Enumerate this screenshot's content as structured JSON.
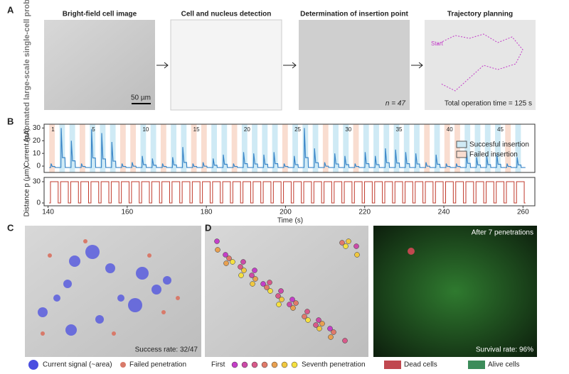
{
  "panel_a": {
    "label": "A",
    "side_title": "Automated large-scale single-cell probing",
    "steps": [
      {
        "title": "Bright-field cell image",
        "note": "50 µm"
      },
      {
        "title": "Cell and nucleus detection"
      },
      {
        "title": "Determination of insertion point",
        "note": "n = 47"
      },
      {
        "title": "Trajectory planning",
        "note": "Total operation time = 125 s",
        "start": "Start"
      }
    ]
  },
  "panel_b": {
    "label": "B",
    "xlabel": "Time (s)",
    "xlim": [
      139,
      263
    ],
    "xticks": [
      140,
      160,
      180,
      200,
      220,
      240,
      260
    ],
    "trial_start": 140.3,
    "trial_period": 2.56,
    "trial_labels": [
      1,
      5,
      10,
      15,
      20,
      25,
      30,
      35,
      40,
      45
    ],
    "success_color": "#cfeaf5",
    "failed_color": "#f9ddd0",
    "trace_color": "#3a86c8",
    "outcomes": [
      "failed",
      "success",
      "success",
      "failed",
      "success",
      "success",
      "success",
      "failed",
      "failed",
      "success",
      "success",
      "failed",
      "success",
      "success",
      "failed",
      "failed",
      "success",
      "success",
      "failed",
      "success",
      "success",
      "success",
      "success",
      "failed",
      "success",
      "success",
      "success",
      "failed",
      "success",
      "success",
      "failed",
      "success",
      "success",
      "success",
      "success",
      "success",
      "success",
      "failed",
      "success",
      "failed",
      "failed",
      "success",
      "success",
      "success",
      "success",
      "failed",
      "success"
    ],
    "current": {
      "ylabel": "Current (pA)",
      "ylim": [
        -5,
        33
      ],
      "yticks": [
        0,
        10,
        20,
        30
      ],
      "legend": [
        "Succesful insertion",
        "Failed insertion"
      ],
      "peaks": [
        2,
        30,
        20,
        2,
        29,
        26,
        19,
        2,
        3,
        8,
        6,
        2,
        7,
        15,
        2,
        3,
        6,
        9,
        2,
        11,
        10,
        9,
        11,
        2,
        8,
        30,
        14,
        3,
        10,
        8,
        2,
        11,
        8,
        14,
        13,
        11,
        10,
        3,
        9,
        2,
        2,
        12,
        7,
        8,
        9,
        2,
        7
      ]
    },
    "distance": {
      "ylabel": "Distance p (μm)",
      "ylim": [
        -4,
        36
      ],
      "yticks": [
        0,
        30
      ],
      "depth": 30,
      "color": "#c0392b"
    }
  },
  "panel_c": {
    "label": "C",
    "note": "Success rate: 32/47",
    "legend": [
      "Current signal (~area)",
      "Failed penetration"
    ],
    "signal_color": "#4a4ee0",
    "failed_color": "#d87a6a"
  },
  "panel_d": {
    "label": "D",
    "legend_first": "First",
    "legend_last": "Seventh penetration",
    "penetration_colors": [
      "#c43fc8",
      "#cc4aa8",
      "#d85a8a",
      "#e07a6a",
      "#e8a050",
      "#f0c840",
      "#f5e040"
    ],
    "live_title": "After 7 penetrations",
    "live_note": "Survival rate: 96%",
    "dead_label": "Dead cells",
    "alive_label": "Alive cells",
    "dead_color": "#c0484f",
    "alive_color": "#3c8c5a"
  }
}
